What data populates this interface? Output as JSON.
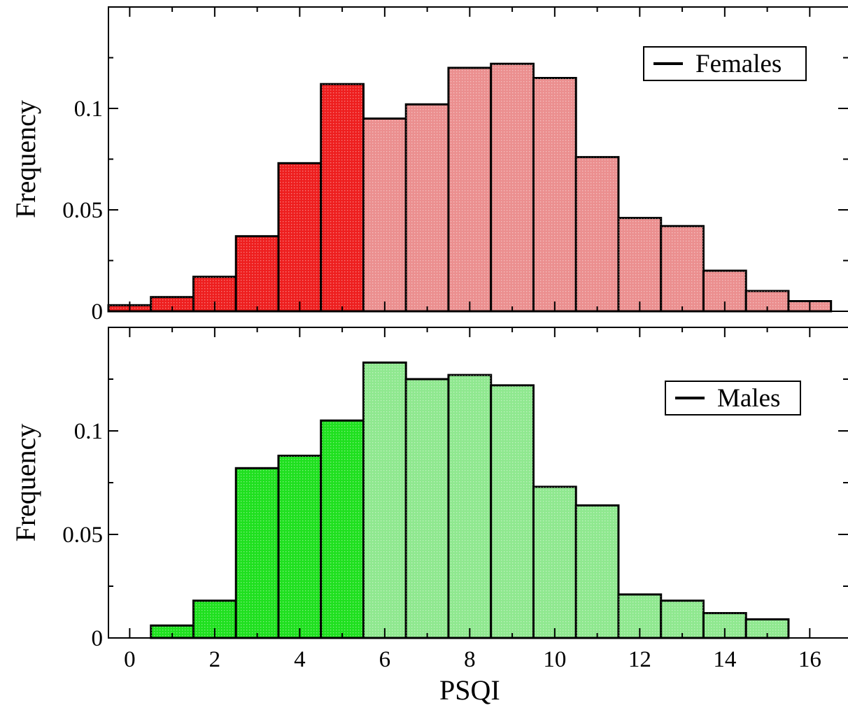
{
  "chart_data": [
    {
      "type": "bar",
      "xlabel": "",
      "ylabel": "Frequency",
      "x": [
        0,
        1,
        2,
        3,
        4,
        5,
        6,
        7,
        8,
        9,
        10,
        11,
        12,
        13,
        14,
        15,
        16
      ],
      "values": [
        0.003,
        0.007,
        0.017,
        0.037,
        0.073,
        0.112,
        0.095,
        0.102,
        0.12,
        0.122,
        0.115,
        0.076,
        0.046,
        0.042,
        0.02,
        0.01,
        0.005
      ],
      "highlight_until_x": 5,
      "colors": {
        "highlight": "#ee1f1f",
        "base": "#eb8f8f"
      },
      "xlim": [
        -0.5,
        16.9
      ],
      "ylim": [
        0,
        0.15
      ],
      "yticks": [
        0,
        0.05,
        0.1
      ],
      "yticklabels": [
        "0",
        "0.05",
        "0.1"
      ],
      "grid": false,
      "legend": {
        "label": "Females",
        "position": "top-right"
      }
    },
    {
      "type": "bar",
      "xlabel": "PSQI",
      "ylabel": "Frequency",
      "x": [
        0,
        1,
        2,
        3,
        4,
        5,
        6,
        7,
        8,
        9,
        10,
        11,
        12,
        13,
        14,
        15
      ],
      "values": [
        0.0,
        0.006,
        0.018,
        0.082,
        0.088,
        0.105,
        0.133,
        0.125,
        0.127,
        0.122,
        0.073,
        0.064,
        0.021,
        0.018,
        0.012,
        0.009
      ],
      "highlight_until_x": 5,
      "colors": {
        "highlight": "#1fe01f",
        "base": "#8fe88f"
      },
      "xlim": [
        -0.5,
        16.9
      ],
      "ylim": [
        0,
        0.15
      ],
      "xticks": [
        0,
        2,
        4,
        6,
        8,
        10,
        12,
        14,
        16
      ],
      "xticklabels": [
        "0",
        "2",
        "4",
        "6",
        "8",
        "10",
        "12",
        "14",
        "16"
      ],
      "yticks": [
        0,
        0.05,
        0.1
      ],
      "yticklabels": [
        "0",
        "0.05",
        "0.1"
      ],
      "grid": false,
      "legend": {
        "label": "Males",
        "position": "top-right"
      }
    }
  ]
}
